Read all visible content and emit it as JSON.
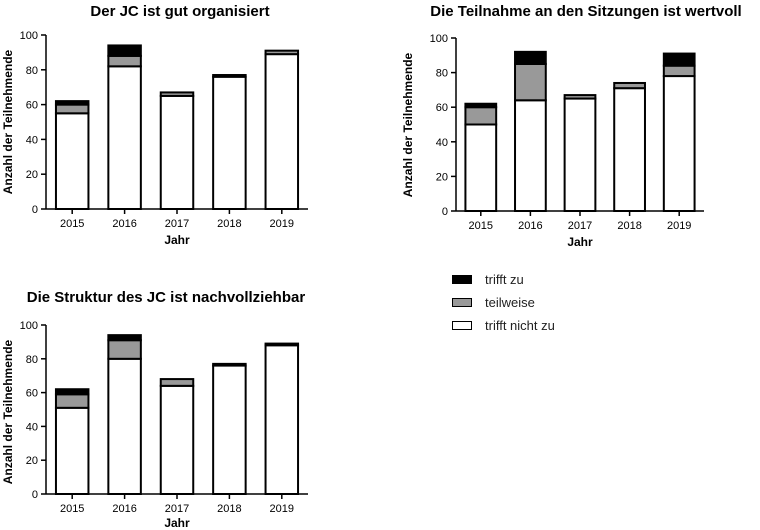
{
  "legend": [
    {
      "label": "trifft zu",
      "color": "#000000"
    },
    {
      "label": "teilweise",
      "color": "#999999"
    },
    {
      "label": "trifft nicht zu",
      "color": "#ffffff"
    }
  ],
  "chart_data": [
    {
      "type": "bar",
      "stacked": true,
      "title": "Der JC ist gut organisiert",
      "xlabel": "Jahr",
      "ylabel": "Anzahl der Teilnehmende",
      "ylim": [
        0,
        100
      ],
      "yticks": [
        0,
        20,
        40,
        60,
        80,
        100
      ],
      "categories": [
        "2015",
        "2016",
        "2017",
        "2018",
        "2019"
      ],
      "series": [
        {
          "name": "trifft nicht zu",
          "color": "#ffffff",
          "values": [
            55,
            82,
            65,
            76,
            89
          ]
        },
        {
          "name": "teilweise",
          "color": "#999999",
          "values": [
            5,
            6,
            2,
            0,
            2
          ]
        },
        {
          "name": "trifft zu",
          "color": "#000000",
          "values": [
            2,
            6,
            0,
            1,
            0
          ]
        }
      ]
    },
    {
      "type": "bar",
      "stacked": true,
      "title": "Die Teilnahme an den Sitzungen ist wertvoll",
      "xlabel": "Jahr",
      "ylabel": "Anzahl der Teilnehmende",
      "ylim": [
        0,
        100
      ],
      "yticks": [
        0,
        20,
        40,
        60,
        80,
        100
      ],
      "categories": [
        "2015",
        "2016",
        "2017",
        "2018",
        "2019"
      ],
      "series": [
        {
          "name": "trifft nicht zu",
          "color": "#ffffff",
          "values": [
            50,
            64,
            65,
            71,
            78
          ]
        },
        {
          "name": "teilweise",
          "color": "#999999",
          "values": [
            10,
            21,
            2,
            3,
            6
          ]
        },
        {
          "name": "trifft zu",
          "color": "#000000",
          "values": [
            2,
            7,
            0,
            0,
            7
          ]
        }
      ]
    },
    {
      "type": "bar",
      "stacked": true,
      "title": "Die Struktur des JC ist nachvollziehbar",
      "xlabel": "Jahr",
      "ylabel": "Anzahl der Teilnehmende",
      "ylim": [
        0,
        100
      ],
      "yticks": [
        0,
        20,
        40,
        60,
        80,
        100
      ],
      "categories": [
        "2015",
        "2016",
        "2017",
        "2018",
        "2019"
      ],
      "series": [
        {
          "name": "trifft nicht zu",
          "color": "#ffffff",
          "values": [
            51,
            80,
            64,
            76,
            88
          ]
        },
        {
          "name": "teilweise",
          "color": "#999999",
          "values": [
            8,
            11,
            4,
            1,
            1
          ]
        },
        {
          "name": "trifft zu",
          "color": "#000000",
          "values": [
            3,
            3,
            0,
            0,
            0
          ]
        }
      ]
    }
  ]
}
